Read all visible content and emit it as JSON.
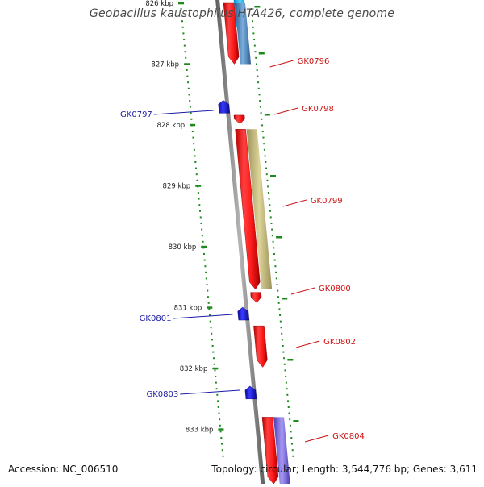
{
  "title": "Geobacillus kaustophilus HTA426, complete genome",
  "footer": {
    "accession": "Accession: NC_006510",
    "topology": "Topology: circular; Length: 3,544,776 bp; Genes: 3,611"
  },
  "colors": {
    "axis": "#808080",
    "forward_gene": "#ff1a1a",
    "reverse_gene": "#1f1fe0",
    "ruler_ticks": "#1e8a1e",
    "label_forward": "#cc1111",
    "label_reverse": "#1a1aa8",
    "band_cyan": "#1fb8ee",
    "band_steelblue": "#4a86c8",
    "band_khaki": "#c7bd79",
    "band_purple": "#7e6ee0"
  },
  "ruler": {
    "labels": [
      "826 kbp",
      "827 kbp",
      "828 kbp",
      "829 kbp",
      "830 kbp",
      "831 kbp",
      "832 kbp",
      "833 kbp"
    ]
  },
  "genes": [
    {
      "id": "GK0796",
      "strand": "forward",
      "start_kbp": 826.0,
      "end_kbp": 827.0,
      "label": "GK0796",
      "band": "steelblue"
    },
    {
      "id": "GK0797",
      "strand": "reverse",
      "start_kbp": 827.65,
      "end_kbp": 827.75,
      "label": "GK0797"
    },
    {
      "id": "GK0798",
      "strand": "forward",
      "start_kbp": 827.84,
      "end_kbp": 827.98,
      "label": "GK0798"
    },
    {
      "id": "GK0799",
      "strand": "forward",
      "start_kbp": 828.07,
      "end_kbp": 830.7,
      "label": "GK0799",
      "band": "khaki"
    },
    {
      "id": "GK0800",
      "strand": "forward",
      "start_kbp": 830.75,
      "end_kbp": 830.92,
      "label": "GK0800"
    },
    {
      "id": "GK0801",
      "strand": "reverse",
      "start_kbp": 831.02,
      "end_kbp": 831.18,
      "label": "GK0801"
    },
    {
      "id": "GK0802",
      "strand": "forward",
      "start_kbp": 831.3,
      "end_kbp": 831.98,
      "label": "GK0802"
    },
    {
      "id": "GK0803",
      "strand": "reverse",
      "start_kbp": 832.27,
      "end_kbp": 832.52,
      "label": "GK0803"
    },
    {
      "id": "GK0804",
      "strand": "forward",
      "start_kbp": 832.8,
      "end_kbp": 833.9,
      "label": "GK0804",
      "band": "purple"
    }
  ],
  "extra_bands": [
    {
      "color": "cyan",
      "start_kbp": 825.7,
      "end_kbp": 826.4
    }
  ]
}
